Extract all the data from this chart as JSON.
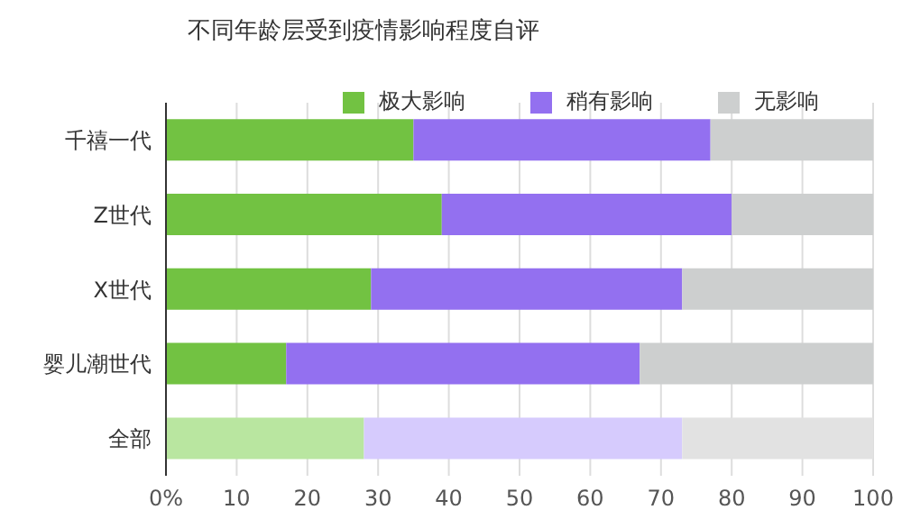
{
  "chart_data": {
    "type": "bar",
    "orientation": "horizontal",
    "stacked": true,
    "title": "不同年龄层受到疫情影响程度自评",
    "categories": [
      "千禧一代",
      "Z世代",
      "X世代",
      "婴儿潮世代",
      "全部"
    ],
    "series": [
      {
        "name": "极大影响",
        "color": "#72c242",
        "colors": [
          "#72c242",
          "#72c242",
          "#72c242",
          "#72c242",
          "#b9e6a0"
        ],
        "values": [
          35,
          39,
          29,
          17,
          28
        ]
      },
      {
        "name": "稍有影响",
        "color": "#9370f0",
        "colors": [
          "#9370f0",
          "#9370f0",
          "#9370f0",
          "#9370f0",
          "#d6cbfd"
        ],
        "values": [
          42,
          41,
          44,
          50,
          45
        ]
      },
      {
        "name": "无影响",
        "color": "#cdcfcf",
        "colors": [
          "#cdcfcf",
          "#cdcfcf",
          "#cdcfcf",
          "#cdcfcf",
          "#e2e2e2"
        ],
        "values": [
          23,
          20,
          27,
          33,
          27
        ]
      }
    ],
    "xlim": [
      0,
      100
    ],
    "xticks": [
      {
        "value": 0,
        "label": "0%"
      },
      10,
      20,
      30,
      40,
      50,
      60,
      70,
      80,
      90,
      100
    ],
    "grid": "x",
    "legend": "top"
  }
}
